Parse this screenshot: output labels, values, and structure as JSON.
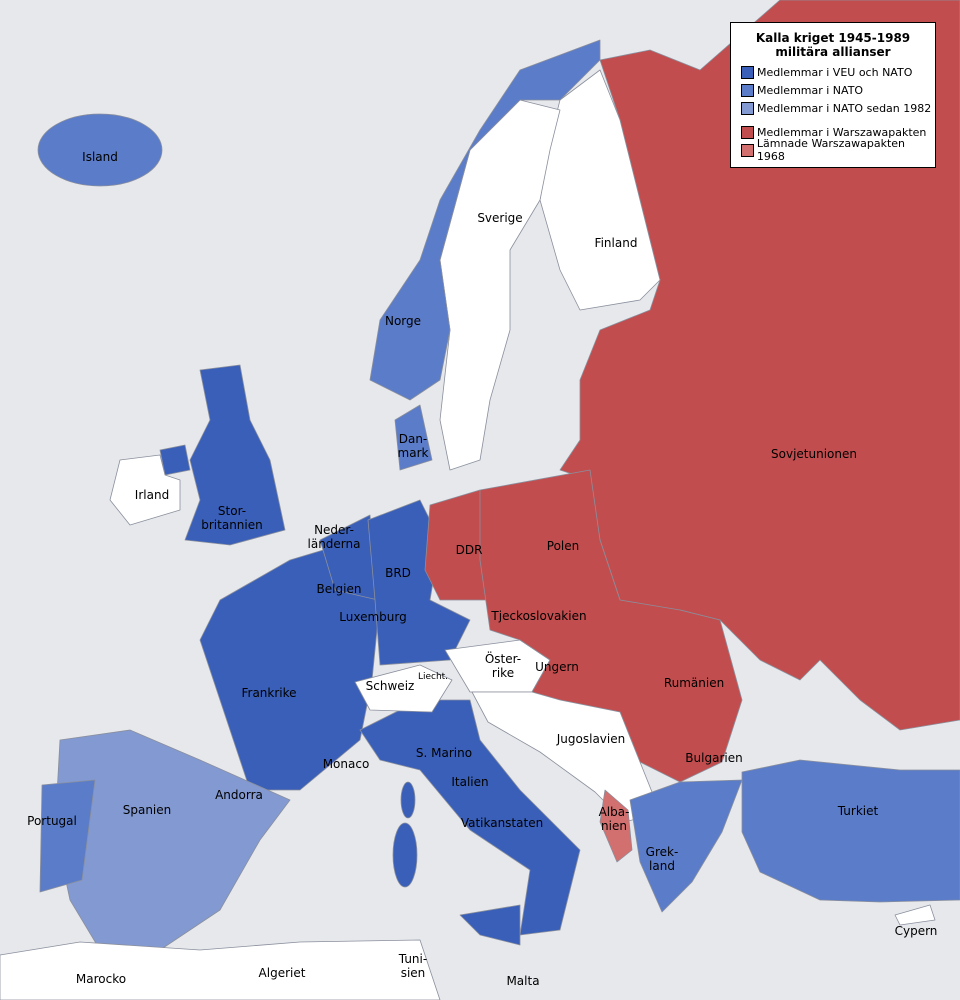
{
  "legend": {
    "title_line1": "Kalla kriget 1945-1989",
    "title_line2": "militära allianser",
    "items": [
      {
        "label": "Medlemmar i VEU och NATO",
        "color": "#3a5fb8"
      },
      {
        "label": "Medlemmar i NATO",
        "color": "#5b7cc8"
      },
      {
        "label": "Medlemmar i NATO sedan 1982",
        "color": "#8299d2"
      },
      {
        "label": "Medlemmar i Warszawapakten",
        "color": "#c24d4e"
      },
      {
        "label": "Lämnade Warszawapakten 1968",
        "color": "#d27070"
      }
    ]
  },
  "colors": {
    "sea": "#e6e8ec",
    "neutral": "#ffffff",
    "border": "#8a8f9c"
  },
  "labels": {
    "island": "Island",
    "sverige": "Sverige",
    "finland": "Finland",
    "norge": "Norge",
    "danmark1": "Dan-",
    "danmark2": "mark",
    "irland": "Irland",
    "storbritannien1": "Stor-",
    "storbritannien2": "britannien",
    "nederlanderna1": "Neder-",
    "nederlanderna2": "länderna",
    "ddr": "DDR",
    "polen": "Polen",
    "sovjetunionen": "Sovjetunionen",
    "brd": "BRD",
    "belgien": "Belgien",
    "luxemburg": "Luxemburg",
    "tjeckoslovakien": "Tjeckoslovakien",
    "osterrike1": "Öster-",
    "osterrike2": "rike",
    "ungern": "Ungern",
    "schweiz": "Schweiz",
    "liecht": "Liecht.",
    "frankrike": "Frankrike",
    "rumanien": "Rumänien",
    "jugoslavien": "Jugoslavien",
    "monaco": "Monaco",
    "s_marino": "S. Marino",
    "bulgarien": "Bulgarien",
    "italien": "Italien",
    "andorra": "Andorra",
    "spanien": "Spanien",
    "portugal": "Portugal",
    "vatikanstaten": "Vatikanstaten",
    "albanien1": "Alba-",
    "albanien2": "nien",
    "turkiet": "Turkiet",
    "grekland1": "Grek-",
    "grekland2": "land",
    "cypern": "Cypern",
    "marocko": "Marocko",
    "algeriet": "Algeriet",
    "tunisien1": "Tuni-",
    "tunisien2": "sien",
    "malta": "Malta"
  }
}
